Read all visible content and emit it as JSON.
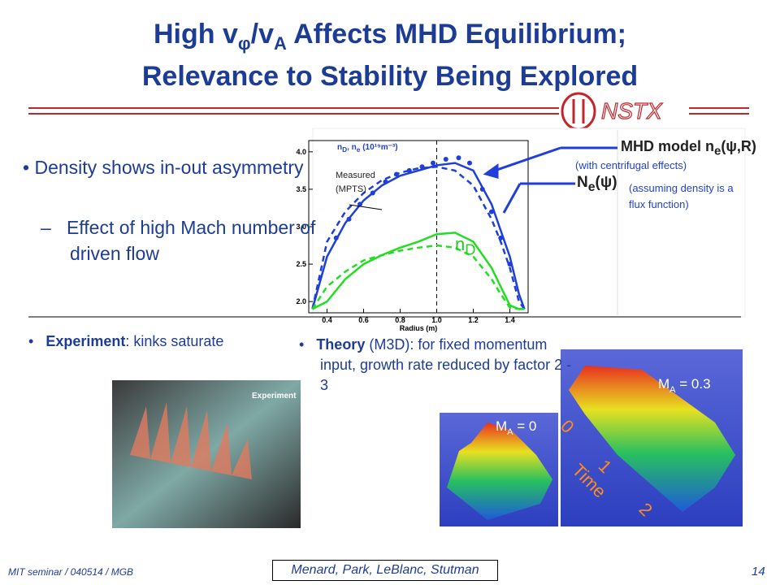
{
  "header": {
    "title_line1": [
      "High v",
      "φ",
      "/v",
      "A",
      " Affects MHD Equilibrium;"
    ],
    "title_line2": "Relevance to Stability Being Explored",
    "logo": "NSTX"
  },
  "bullets": {
    "main": "Density shows in-out asymmetry",
    "sub": "Effect of high Mach number of driven flow"
  },
  "experiment": {
    "bold": "Experiment",
    "rest": ": kinks saturate",
    "image_label": "Experiment"
  },
  "theory": {
    "bold": "Theory",
    "rest": " (M3D): for fixed momentum input, growth rate reduced by factor 2 - 3",
    "plot_low": [
      "M",
      "A",
      " = 0"
    ],
    "plot_high": [
      "M",
      "A",
      " = 0.3"
    ],
    "time_ticks": [
      "0",
      "1",
      "2"
    ],
    "time_label": "Time"
  },
  "footer": {
    "left": "MIT seminar / 040514 / MGB",
    "center": "Menard, Park, LeBlanc, Stutman",
    "page": "14"
  },
  "chart_data": {
    "type": "line",
    "xlabel": "Radius (m)",
    "ylabel": [
      "n",
      "D",
      ", n",
      "e",
      " (10¹⁹m⁻³)"
    ],
    "xlim": [
      0.3,
      1.5
    ],
    "ylim": [
      1.85,
      4.15
    ],
    "xticks": [
      0.4,
      0.6,
      0.8,
      {
        "value": 1.0,
        "label": "1.0"
      },
      1.2,
      1.4
    ],
    "yticks": [
      {
        "value": 2.0,
        "label": "2.0"
      },
      2.5,
      {
        "value": 3.0,
        "label": "3.0"
      },
      3.5,
      {
        "value": 4.0,
        "label": "4.0"
      }
    ],
    "vline_x": 1.0,
    "x": [
      0.32,
      0.4,
      0.5,
      0.6,
      0.7,
      0.8,
      0.9,
      1.0,
      1.1,
      1.2,
      1.3,
      1.35,
      1.4,
      1.45,
      1.48
    ],
    "series": [
      {
        "name": "MHD model",
        "color": "#1f3fd8",
        "dash": false,
        "values": [
          1.9,
          2.6,
          3.05,
          3.35,
          3.55,
          3.68,
          3.75,
          3.82,
          3.85,
          3.75,
          3.3,
          2.95,
          2.6,
          2.1,
          1.9
        ]
      },
      {
        "name": "Ne(psi)",
        "color": "#1f3fd8",
        "dash": true,
        "values": [
          1.9,
          2.8,
          3.2,
          3.45,
          3.62,
          3.72,
          3.78,
          3.8,
          3.75,
          3.55,
          3.1,
          2.8,
          2.45,
          2.0,
          1.9
        ]
      },
      {
        "name": "nD",
        "color": "#22dd22",
        "dash": false,
        "values": [
          1.9,
          2.0,
          2.3,
          2.5,
          2.62,
          2.72,
          2.8,
          2.9,
          2.92,
          2.8,
          2.45,
          2.2,
          1.95,
          1.9,
          1.9
        ]
      },
      {
        "name": "nD flux",
        "color": "#22dd22",
        "dash": true,
        "values": [
          1.9,
          2.2,
          2.4,
          2.55,
          2.62,
          2.68,
          2.72,
          2.75,
          2.72,
          2.6,
          2.3,
          2.1,
          1.92,
          1.9,
          1.9
        ]
      }
    ],
    "measured": {
      "color": "#1f3fd8",
      "x": [
        0.45,
        0.52,
        0.58,
        0.65,
        0.72,
        0.78,
        0.85,
        0.92,
        0.98,
        1.05,
        1.12,
        1.18,
        1.25,
        1.3,
        1.35,
        1.4
      ],
      "values": [
        2.85,
        3.1,
        3.3,
        3.45,
        3.6,
        3.7,
        3.75,
        3.8,
        3.85,
        3.9,
        3.92,
        3.85,
        3.5,
        3.2,
        2.85,
        2.5
      ]
    },
    "annotations": {
      "measured": "Measured (MPTS)",
      "mhd_model": [
        "MHD model n",
        "e",
        "(ψ,R)"
      ],
      "centrifugal": "(with centrifugal effects)",
      "flux": [
        "N",
        "e",
        "(ψ)"
      ],
      "flux_note": "(assuming density is a flux function)",
      "nd": [
        "n",
        "D"
      ]
    }
  }
}
